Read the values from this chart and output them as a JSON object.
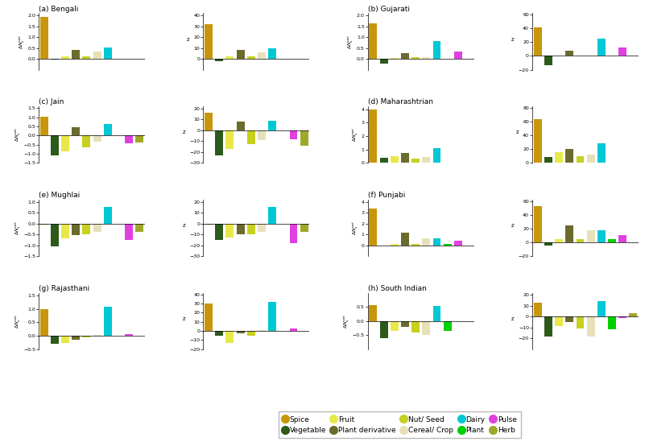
{
  "categories": [
    "Spice",
    "Vegetable",
    "Fruit",
    "Plant derivative",
    "Nut/Seed",
    "Cereal/Crop",
    "Dairy",
    "Plant",
    "Pulse",
    "Herb"
  ],
  "colors": {
    "Spice": "#c8960c",
    "Vegetable": "#2d5a1b",
    "Fruit": "#e8e84a",
    "Plant derivative": "#6b6b2d",
    "Nut/Seed": "#c8d020",
    "Cereal/Crop": "#e8e0b8",
    "Dairy": "#00c8d4",
    "Plant": "#00d000",
    "Pulse": "#e040e0",
    "Herb": "#a0a828"
  },
  "subplots": [
    {
      "label": "(a) Bengali",
      "left_ylim": [
        -0.5,
        2.1
      ],
      "right_ylim": [
        -10,
        42
      ],
      "left_yticks": [
        0,
        0.5,
        1.0,
        1.5,
        2.0
      ],
      "right_yticks": [
        0,
        10,
        20,
        30,
        40
      ],
      "left_data": {
        "Spice": 1.95,
        "Vegetable": -0.05,
        "Fruit": 0.13,
        "Plant derivative": 0.42,
        "Nut/Seed": 0.13,
        "Cereal/Crop": 0.35,
        "Dairy": 0.52,
        "Plant": 0,
        "Pulse": 0,
        "Herb": 0
      },
      "right_data": {
        "Spice": 32,
        "Vegetable": -2,
        "Fruit": 2.5,
        "Plant derivative": 8,
        "Nut/Seed": 2.5,
        "Cereal/Crop": 6,
        "Dairy": 10,
        "Plant": 0,
        "Pulse": 0,
        "Herb": 0
      }
    },
    {
      "label": "(b) Gujarati",
      "left_ylim": [
        -0.5,
        2.1
      ],
      "right_ylim": [
        -20,
        62
      ],
      "left_yticks": [
        0,
        0.5,
        1.0,
        1.5,
        2.0
      ],
      "right_yticks": [
        -20,
        0,
        20,
        40,
        60
      ],
      "left_data": {
        "Spice": 1.65,
        "Vegetable": -0.2,
        "Fruit": 0.03,
        "Plant derivative": 0.25,
        "Nut/Seed": 0.08,
        "Cereal/Crop": 0.08,
        "Dairy": 0.82,
        "Plant": 0,
        "Pulse": 0.32,
        "Herb": 0
      },
      "right_data": {
        "Spice": 41,
        "Vegetable": -13,
        "Fruit": 1,
        "Plant derivative": 8,
        "Nut/Seed": 1,
        "Cereal/Crop": 1,
        "Dairy": 25,
        "Plant": 0,
        "Pulse": 12,
        "Herb": 0
      }
    },
    {
      "label": "(c) Jain",
      "left_ylim": [
        -1.5,
        1.6
      ],
      "right_ylim": [
        -30,
        22
      ],
      "left_yticks": [
        -1.5,
        -1.0,
        -0.5,
        0,
        0.5,
        1.0,
        1.5
      ],
      "right_yticks": [
        -30,
        -20,
        -10,
        0,
        10,
        20
      ],
      "left_data": {
        "Spice": 1.05,
        "Vegetable": -1.1,
        "Fruit": -0.85,
        "Plant derivative": 0.48,
        "Nut/Seed": -0.65,
        "Cereal/Crop": -0.35,
        "Dairy": 0.62,
        "Plant": 0.0,
        "Pulse": -0.42,
        "Herb": -0.38
      },
      "right_data": {
        "Spice": 16,
        "Vegetable": -23,
        "Fruit": -17,
        "Plant derivative": 8,
        "Nut/Seed": -13,
        "Cereal/Crop": -9,
        "Dairy": 9,
        "Plant": 0,
        "Pulse": -8,
        "Herb": -14
      }
    },
    {
      "label": "(d) Maharashtrian",
      "left_ylim": [
        0,
        4.2
      ],
      "right_ylim": [
        0,
        82
      ],
      "left_yticks": [
        0,
        1,
        2,
        3,
        4
      ],
      "right_yticks": [
        0,
        20,
        40,
        60,
        80
      ],
      "left_data": {
        "Spice": 3.95,
        "Vegetable": 0.35,
        "Fruit": 0.48,
        "Plant derivative": 0.72,
        "Nut/Seed": 0.3,
        "Cereal/Crop": 0.42,
        "Dairy": 1.1,
        "Plant": 0,
        "Pulse": 0,
        "Herb": 0
      },
      "right_data": {
        "Spice": 64,
        "Vegetable": 8,
        "Fruit": 15,
        "Plant derivative": 20,
        "Nut/Seed": 10,
        "Cereal/Crop": 12,
        "Dairy": 28,
        "Plant": 0,
        "Pulse": 0,
        "Herb": 0
      }
    },
    {
      "label": "(e) Mughlai",
      "left_ylim": [
        -1.5,
        1.1
      ],
      "right_ylim": [
        -30,
        22
      ],
      "left_yticks": [
        -1.5,
        -1.0,
        -0.5,
        0,
        0.5,
        1.0
      ],
      "right_yticks": [
        -30,
        -20,
        -10,
        0,
        10,
        20
      ],
      "left_data": {
        "Spice": -0.05,
        "Vegetable": -1.05,
        "Fruit": -0.7,
        "Plant derivative": -0.55,
        "Nut/Seed": -0.5,
        "Cereal/Crop": -0.38,
        "Dairy": 0.75,
        "Plant": 0,
        "Pulse": -0.75,
        "Herb": -0.4
      },
      "right_data": {
        "Spice": -1,
        "Vegetable": -15,
        "Fruit": -13,
        "Plant derivative": -10,
        "Nut/Seed": -10,
        "Cereal/Crop": -8,
        "Dairy": 15,
        "Plant": 0,
        "Pulse": -18,
        "Herb": -8
      }
    },
    {
      "label": "(f) Punjabi",
      "left_ylim": [
        -1.0,
        4.2
      ],
      "right_ylim": [
        -20,
        62
      ],
      "left_yticks": [
        0,
        1,
        2,
        3,
        4
      ],
      "right_yticks": [
        -20,
        0,
        20,
        40,
        60
      ],
      "left_data": {
        "Spice": 3.35,
        "Vegetable": -0.05,
        "Fruit": 0.08,
        "Plant derivative": 1.15,
        "Nut/Seed": 0.12,
        "Cereal/Crop": 0.6,
        "Dairy": 0.65,
        "Plant": 0.08,
        "Pulse": 0.42,
        "Herb": 0
      },
      "right_data": {
        "Spice": 52,
        "Vegetable": -5,
        "Fruit": 5,
        "Plant derivative": 25,
        "Nut/Seed": 5,
        "Cereal/Crop": 17,
        "Dairy": 18,
        "Plant": 5,
        "Pulse": 10,
        "Herb": 0
      }
    },
    {
      "label": "(g) Rajasthani",
      "left_ylim": [
        -0.5,
        1.6
      ],
      "right_ylim": [
        -20,
        42
      ],
      "left_yticks": [
        -0.5,
        0,
        0.5,
        1.0,
        1.5
      ],
      "right_yticks": [
        -20,
        -10,
        0,
        10,
        20,
        30,
        40
      ],
      "left_data": {
        "Spice": 1.0,
        "Vegetable": -0.3,
        "Fruit": -0.28,
        "Plant derivative": -0.15,
        "Nut/Seed": -0.05,
        "Cereal/Crop": 0.02,
        "Dairy": 1.07,
        "Plant": 0,
        "Pulse": 0.07,
        "Herb": 0
      },
      "right_data": {
        "Spice": 30,
        "Vegetable": -5,
        "Fruit": -13,
        "Plant derivative": -3,
        "Nut/Seed": -5,
        "Cereal/Crop": 1,
        "Dairy": 32,
        "Plant": 0,
        "Pulse": 3,
        "Herb": 0
      }
    },
    {
      "label": "(h) South Indian",
      "left_ylim": [
        -1.0,
        1.0
      ],
      "right_ylim": [
        -30,
        22
      ],
      "left_yticks": [
        -0.5,
        0,
        0.5
      ],
      "right_yticks": [
        -20,
        -10,
        0,
        10,
        20
      ],
      "left_data": {
        "Spice": 0.55,
        "Vegetable": -0.62,
        "Fruit": -0.35,
        "Plant derivative": -0.22,
        "Nut/Seed": -0.42,
        "Cereal/Crop": -0.5,
        "Dairy": 0.52,
        "Plant": -0.35,
        "Pulse": -0.02,
        "Herb": 0.0
      },
      "right_data": {
        "Spice": 13,
        "Vegetable": -18,
        "Fruit": -9,
        "Plant derivative": -5,
        "Nut/Seed": -11,
        "Cereal/Crop": -18,
        "Dairy": 14,
        "Plant": -12,
        "Pulse": -1,
        "Herb": 3
      }
    }
  ],
  "legend": [
    {
      "label": "Spice",
      "color": "#c8960c"
    },
    {
      "label": "Vegetable",
      "color": "#2d5a1b"
    },
    {
      "label": "Fruit",
      "color": "#e8e84a"
    },
    {
      "label": "Plant derivative",
      "color": "#6b6b2d"
    },
    {
      "label": "Nut/ Seed",
      "color": "#c8d020"
    },
    {
      "label": "Cereal/ Crop",
      "color": "#e8e0b8"
    },
    {
      "label": "Dairy",
      "color": "#00c8d4"
    },
    {
      "label": "Plant",
      "color": "#00d000"
    },
    {
      "label": "Pulse",
      "color": "#e040e0"
    },
    {
      "label": "Herb",
      "color": "#a0a828"
    }
  ]
}
